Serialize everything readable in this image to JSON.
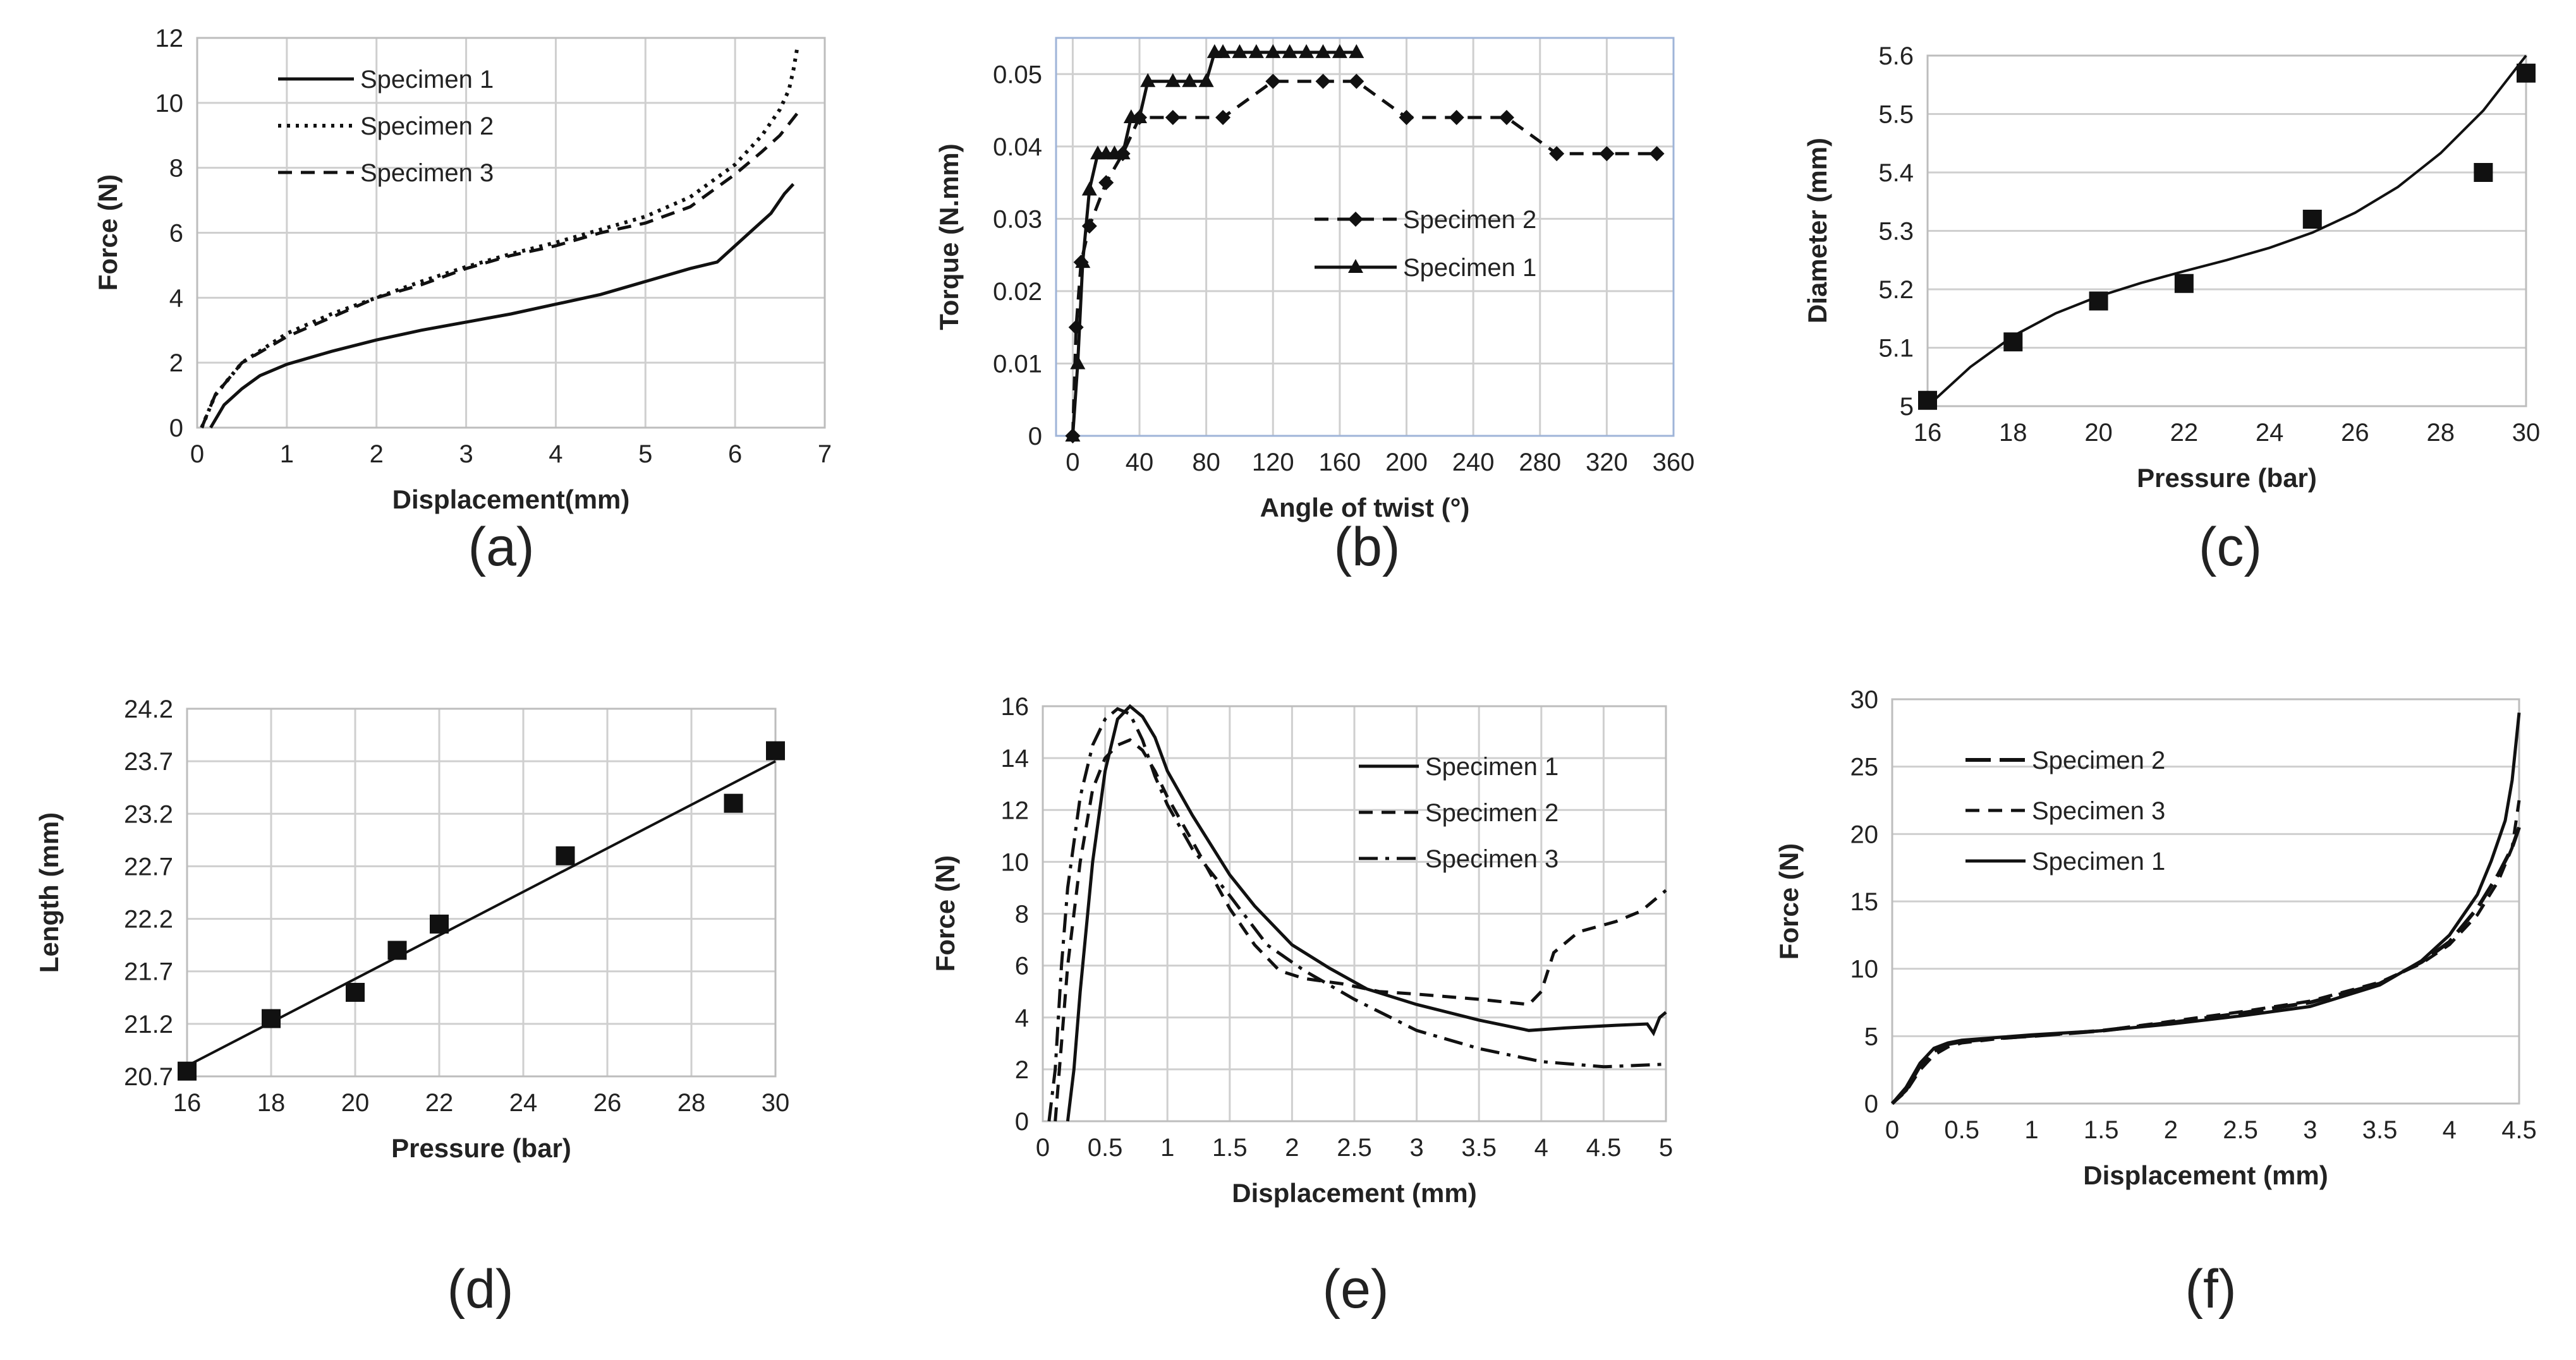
{
  "chart_data": [
    {
      "id": "a",
      "type": "line",
      "panel_label": "(a)",
      "xlabel": "Displacement(mm)",
      "ylabel": "Force (N)",
      "xlim": [
        0,
        7
      ],
      "ylim": [
        0,
        12
      ],
      "xticks": [
        0,
        1,
        2,
        3,
        4,
        5,
        6,
        7
      ],
      "yticks": [
        0,
        2,
        4,
        6,
        8,
        10,
        12
      ],
      "grid": "both",
      "legend_position": "top-left",
      "series": [
        {
          "name": "Specimen 1",
          "style": "solid",
          "x": [
            0.15,
            0.3,
            0.5,
            0.7,
            1.0,
            1.5,
            2.0,
            2.5,
            3.0,
            3.5,
            4.0,
            4.5,
            5.0,
            5.5,
            5.8,
            6.0,
            6.2,
            6.4,
            6.55,
            6.65
          ],
          "y": [
            0,
            0.7,
            1.2,
            1.6,
            1.95,
            2.35,
            2.7,
            3.0,
            3.25,
            3.5,
            3.8,
            4.1,
            4.5,
            4.9,
            5.1,
            5.6,
            6.1,
            6.6,
            7.2,
            7.5
          ]
        },
        {
          "name": "Specimen 2",
          "style": "dotted",
          "x": [
            0.05,
            0.2,
            0.5,
            1.0,
            1.5,
            2.0,
            2.5,
            3.0,
            3.5,
            4.0,
            4.5,
            5.0,
            5.5,
            6.0,
            6.3,
            6.5,
            6.6,
            6.65,
            6.7
          ],
          "y": [
            0,
            1.0,
            2.0,
            2.9,
            3.5,
            4.0,
            4.5,
            4.95,
            5.35,
            5.7,
            6.1,
            6.5,
            7.1,
            8.1,
            9.0,
            9.8,
            10.4,
            11.0,
            11.8
          ]
        },
        {
          "name": "Specimen 3",
          "style": "dashed",
          "x": [
            0.05,
            0.2,
            0.5,
            1.0,
            1.5,
            2.0,
            2.5,
            3.0,
            3.5,
            4.0,
            4.5,
            5.0,
            5.5,
            6.0,
            6.3,
            6.5,
            6.7
          ],
          "y": [
            0,
            1.0,
            2.0,
            2.8,
            3.4,
            4.0,
            4.4,
            4.9,
            5.3,
            5.6,
            6.0,
            6.3,
            6.8,
            7.8,
            8.5,
            9.0,
            9.7
          ]
        }
      ]
    },
    {
      "id": "b",
      "type": "line",
      "panel_label": "(b)",
      "xlabel": "Angle of twist (°)",
      "ylabel": "Torque (N.mm)",
      "xlim": [
        -10,
        360
      ],
      "ylim": [
        0,
        0.055
      ],
      "xticks": [
        0,
        40,
        80,
        120,
        160,
        200,
        240,
        280,
        320,
        360
      ],
      "yticks": [
        0,
        0.01,
        0.02,
        0.03,
        0.04,
        0.05
      ],
      "grid": "both",
      "legend_position": "center-right",
      "series": [
        {
          "name": "Specimen 2",
          "style": "dashed",
          "marker": "diamond",
          "x": [
            0,
            2,
            5,
            10,
            20,
            30,
            40,
            60,
            90,
            120,
            150,
            170,
            200,
            230,
            260,
            290,
            320,
            350
          ],
          "y": [
            0,
            0.015,
            0.024,
            0.029,
            0.035,
            0.039,
            0.044,
            0.044,
            0.044,
            0.049,
            0.049,
            0.049,
            0.044,
            0.044,
            0.044,
            0.039,
            0.039,
            0.039
          ]
        },
        {
          "name": "Specimen 1",
          "style": "solid",
          "marker": "triangle",
          "x": [
            0,
            3,
            6,
            10,
            15,
            20,
            25,
            30,
            35,
            40,
            45,
            60,
            70,
            80,
            85,
            90,
            100,
            110,
            120,
            130,
            140,
            150,
            160,
            170
          ],
          "y": [
            0,
            0.01,
            0.024,
            0.034,
            0.039,
            0.039,
            0.039,
            0.039,
            0.044,
            0.044,
            0.049,
            0.049,
            0.049,
            0.049,
            0.053,
            0.053,
            0.053,
            0.053,
            0.053,
            0.053,
            0.053,
            0.053,
            0.053,
            0.053
          ]
        }
      ]
    },
    {
      "id": "c",
      "type": "scatter",
      "panel_label": "(c)",
      "xlabel": "Pressure (bar)",
      "ylabel": "Diameter (mm)",
      "xlim": [
        16,
        30
      ],
      "ylim": [
        5,
        5.6
      ],
      "xticks": [
        16,
        18,
        20,
        22,
        24,
        26,
        28,
        30
      ],
      "yticks": [
        5,
        5.1,
        5.2,
        5.3,
        5.4,
        5.5,
        5.6
      ],
      "ytick_labels": [
        "5",
        "5.1",
        "5.2",
        "5.3",
        "5.4",
        "5.5",
        "5.6"
      ],
      "grid": "y",
      "points": {
        "x": [
          16,
          18,
          20,
          22,
          25,
          29,
          30
        ],
        "y": [
          5.01,
          5.11,
          5.18,
          5.21,
          5.32,
          5.4,
          5.57
        ]
      },
      "trendline": {
        "x": [
          16,
          17,
          18,
          19,
          20,
          21,
          22,
          23,
          24,
          25,
          26,
          27,
          28,
          29,
          30
        ],
        "y": [
          5.0,
          5.067,
          5.12,
          5.159,
          5.188,
          5.211,
          5.231,
          5.25,
          5.271,
          5.297,
          5.331,
          5.375,
          5.433,
          5.506,
          5.6
        ]
      }
    },
    {
      "id": "d",
      "type": "scatter",
      "panel_label": "(d)",
      "xlabel": "Pressure (bar)",
      "ylabel": "Length  (mm)",
      "xlim": [
        16,
        30
      ],
      "ylim": [
        20.7,
        24.2
      ],
      "xticks": [
        16,
        18,
        20,
        22,
        24,
        26,
        28,
        30
      ],
      "yticks": [
        20.7,
        21.2,
        21.7,
        22.2,
        22.7,
        23.2,
        23.7,
        24.2
      ],
      "ytick_labels": [
        "20.7",
        "21.2",
        "21.7",
        "22.2",
        "22.7",
        "23.2",
        "23.7",
        "24.2"
      ],
      "grid": "both",
      "points": {
        "x": [
          16,
          18,
          20,
          21,
          22,
          25,
          29,
          30
        ],
        "y": [
          20.75,
          21.25,
          21.5,
          21.9,
          22.15,
          22.8,
          23.3,
          23.8
        ]
      },
      "trendline": {
        "x": [
          16,
          30
        ],
        "y": [
          20.8,
          23.7
        ]
      }
    },
    {
      "id": "e",
      "type": "line",
      "panel_label": "(e)",
      "xlabel": "Displacement (mm)",
      "ylabel": "Force (N)",
      "xlim": [
        0,
        5
      ],
      "ylim": [
        0,
        16
      ],
      "xticks": [
        0,
        0.5,
        1,
        1.5,
        2,
        2.5,
        3,
        3.5,
        4,
        4.5,
        5
      ],
      "xtick_labels": [
        "0",
        "0.5",
        "1",
        "1.5",
        "2",
        "2.5",
        "3",
        "3.5",
        "4",
        "4.5",
        "5"
      ],
      "yticks": [
        0,
        2,
        4,
        6,
        8,
        10,
        12,
        14,
        16
      ],
      "grid": "both",
      "legend_position": "top-right",
      "series": [
        {
          "name": "Specimen 1",
          "style": "solid",
          "x": [
            0.2,
            0.25,
            0.3,
            0.4,
            0.5,
            0.6,
            0.7,
            0.8,
            0.9,
            1.0,
            1.2,
            1.5,
            1.7,
            2.0,
            2.3,
            2.6,
            3.0,
            3.5,
            3.9,
            4.2,
            4.6,
            4.85,
            4.9,
            4.95,
            5.0
          ],
          "y": [
            0,
            2.0,
            5.0,
            10.0,
            13.5,
            15.5,
            16.0,
            15.6,
            14.8,
            13.5,
            11.8,
            9.5,
            8.3,
            6.8,
            5.9,
            5.1,
            4.5,
            3.9,
            3.5,
            3.6,
            3.7,
            3.75,
            3.4,
            4.0,
            4.2
          ]
        },
        {
          "name": "Specimen 2",
          "style": "dashed",
          "x": [
            0.1,
            0.15,
            0.2,
            0.3,
            0.4,
            0.5,
            0.6,
            0.7,
            0.8,
            0.9,
            1.0,
            1.2,
            1.5,
            1.7,
            1.9,
            2.1,
            2.4,
            2.7,
            3.0,
            3.5,
            3.9,
            4.0,
            4.1,
            4.3,
            4.6,
            4.8,
            5.0
          ],
          "y": [
            0,
            3.0,
            6.0,
            10.0,
            12.8,
            14.0,
            14.5,
            14.7,
            14.3,
            13.5,
            12.5,
            10.8,
            8.2,
            6.8,
            5.8,
            5.5,
            5.3,
            5.0,
            4.9,
            4.7,
            4.5,
            5.0,
            6.5,
            7.3,
            7.7,
            8.1,
            8.9
          ]
        },
        {
          "name": "Specimen 3",
          "style": "dashdot",
          "x": [
            0.05,
            0.1,
            0.15,
            0.2,
            0.3,
            0.4,
            0.5,
            0.6,
            0.7,
            0.8,
            0.9,
            1.0,
            1.2,
            1.5,
            1.8,
            2.1,
            2.5,
            3.0,
            3.5,
            4.0,
            4.5,
            5.0
          ],
          "y": [
            0,
            2.0,
            6.0,
            9.0,
            12.5,
            14.5,
            15.5,
            15.9,
            15.7,
            14.7,
            13.3,
            12.2,
            10.5,
            8.7,
            6.8,
            5.8,
            4.7,
            3.5,
            2.8,
            2.3,
            2.1,
            2.2
          ]
        }
      ]
    },
    {
      "id": "f",
      "type": "line",
      "panel_label": "(f)",
      "xlabel": "Displacement (mm)",
      "ylabel": "Force  (N)",
      "xlim": [
        0,
        4.5
      ],
      "ylim": [
        0,
        30
      ],
      "xticks": [
        0,
        0.5,
        1,
        1.5,
        2,
        2.5,
        3,
        3.5,
        4,
        4.5
      ],
      "xtick_labels": [
        "0",
        "0.5",
        "1",
        "1.5",
        "2",
        "2.5",
        "3",
        "3.5",
        "4",
        "4.5"
      ],
      "yticks": [
        0,
        5,
        10,
        15,
        20,
        25,
        30
      ],
      "grid": "y",
      "legend_position": "top-left",
      "series": [
        {
          "name": "Specimen 2",
          "style": "longdash",
          "x": [
            0,
            0.1,
            0.2,
            0.3,
            0.4,
            0.5,
            0.75,
            1.0,
            1.5,
            2.0,
            2.5,
            3.0,
            3.5,
            3.8,
            4.0,
            4.2,
            4.35,
            4.45,
            4.5
          ],
          "y": [
            0,
            1.0,
            2.8,
            3.9,
            4.4,
            4.6,
            4.85,
            5.0,
            5.4,
            6.0,
            6.7,
            7.5,
            8.9,
            10.5,
            12.0,
            14.5,
            17.0,
            19.0,
            20.5
          ]
        },
        {
          "name": "Specimen 3",
          "style": "dashed",
          "x": [
            0,
            0.1,
            0.2,
            0.3,
            0.4,
            0.5,
            0.75,
            1.0,
            1.5,
            2.0,
            2.5,
            3.0,
            3.5,
            3.8,
            4.0,
            4.2,
            4.35,
            4.45,
            4.5
          ],
          "y": [
            0,
            0.9,
            2.5,
            3.6,
            4.2,
            4.5,
            4.8,
            5.0,
            5.4,
            6.1,
            6.8,
            7.6,
            9.0,
            10.4,
            11.8,
            14.0,
            16.5,
            19.0,
            22.5
          ]
        },
        {
          "name": "Specimen 1",
          "style": "solid",
          "x": [
            0,
            0.1,
            0.2,
            0.3,
            0.4,
            0.5,
            0.75,
            1.0,
            1.5,
            2.0,
            2.5,
            3.0,
            3.5,
            3.8,
            4.0,
            4.2,
            4.3,
            4.4,
            4.45,
            4.5
          ],
          "y": [
            0,
            1.2,
            3.0,
            4.1,
            4.5,
            4.7,
            4.9,
            5.1,
            5.4,
            5.9,
            6.5,
            7.2,
            8.8,
            10.6,
            12.5,
            15.5,
            18.0,
            21.0,
            24.0,
            29.0
          ]
        }
      ]
    }
  ]
}
